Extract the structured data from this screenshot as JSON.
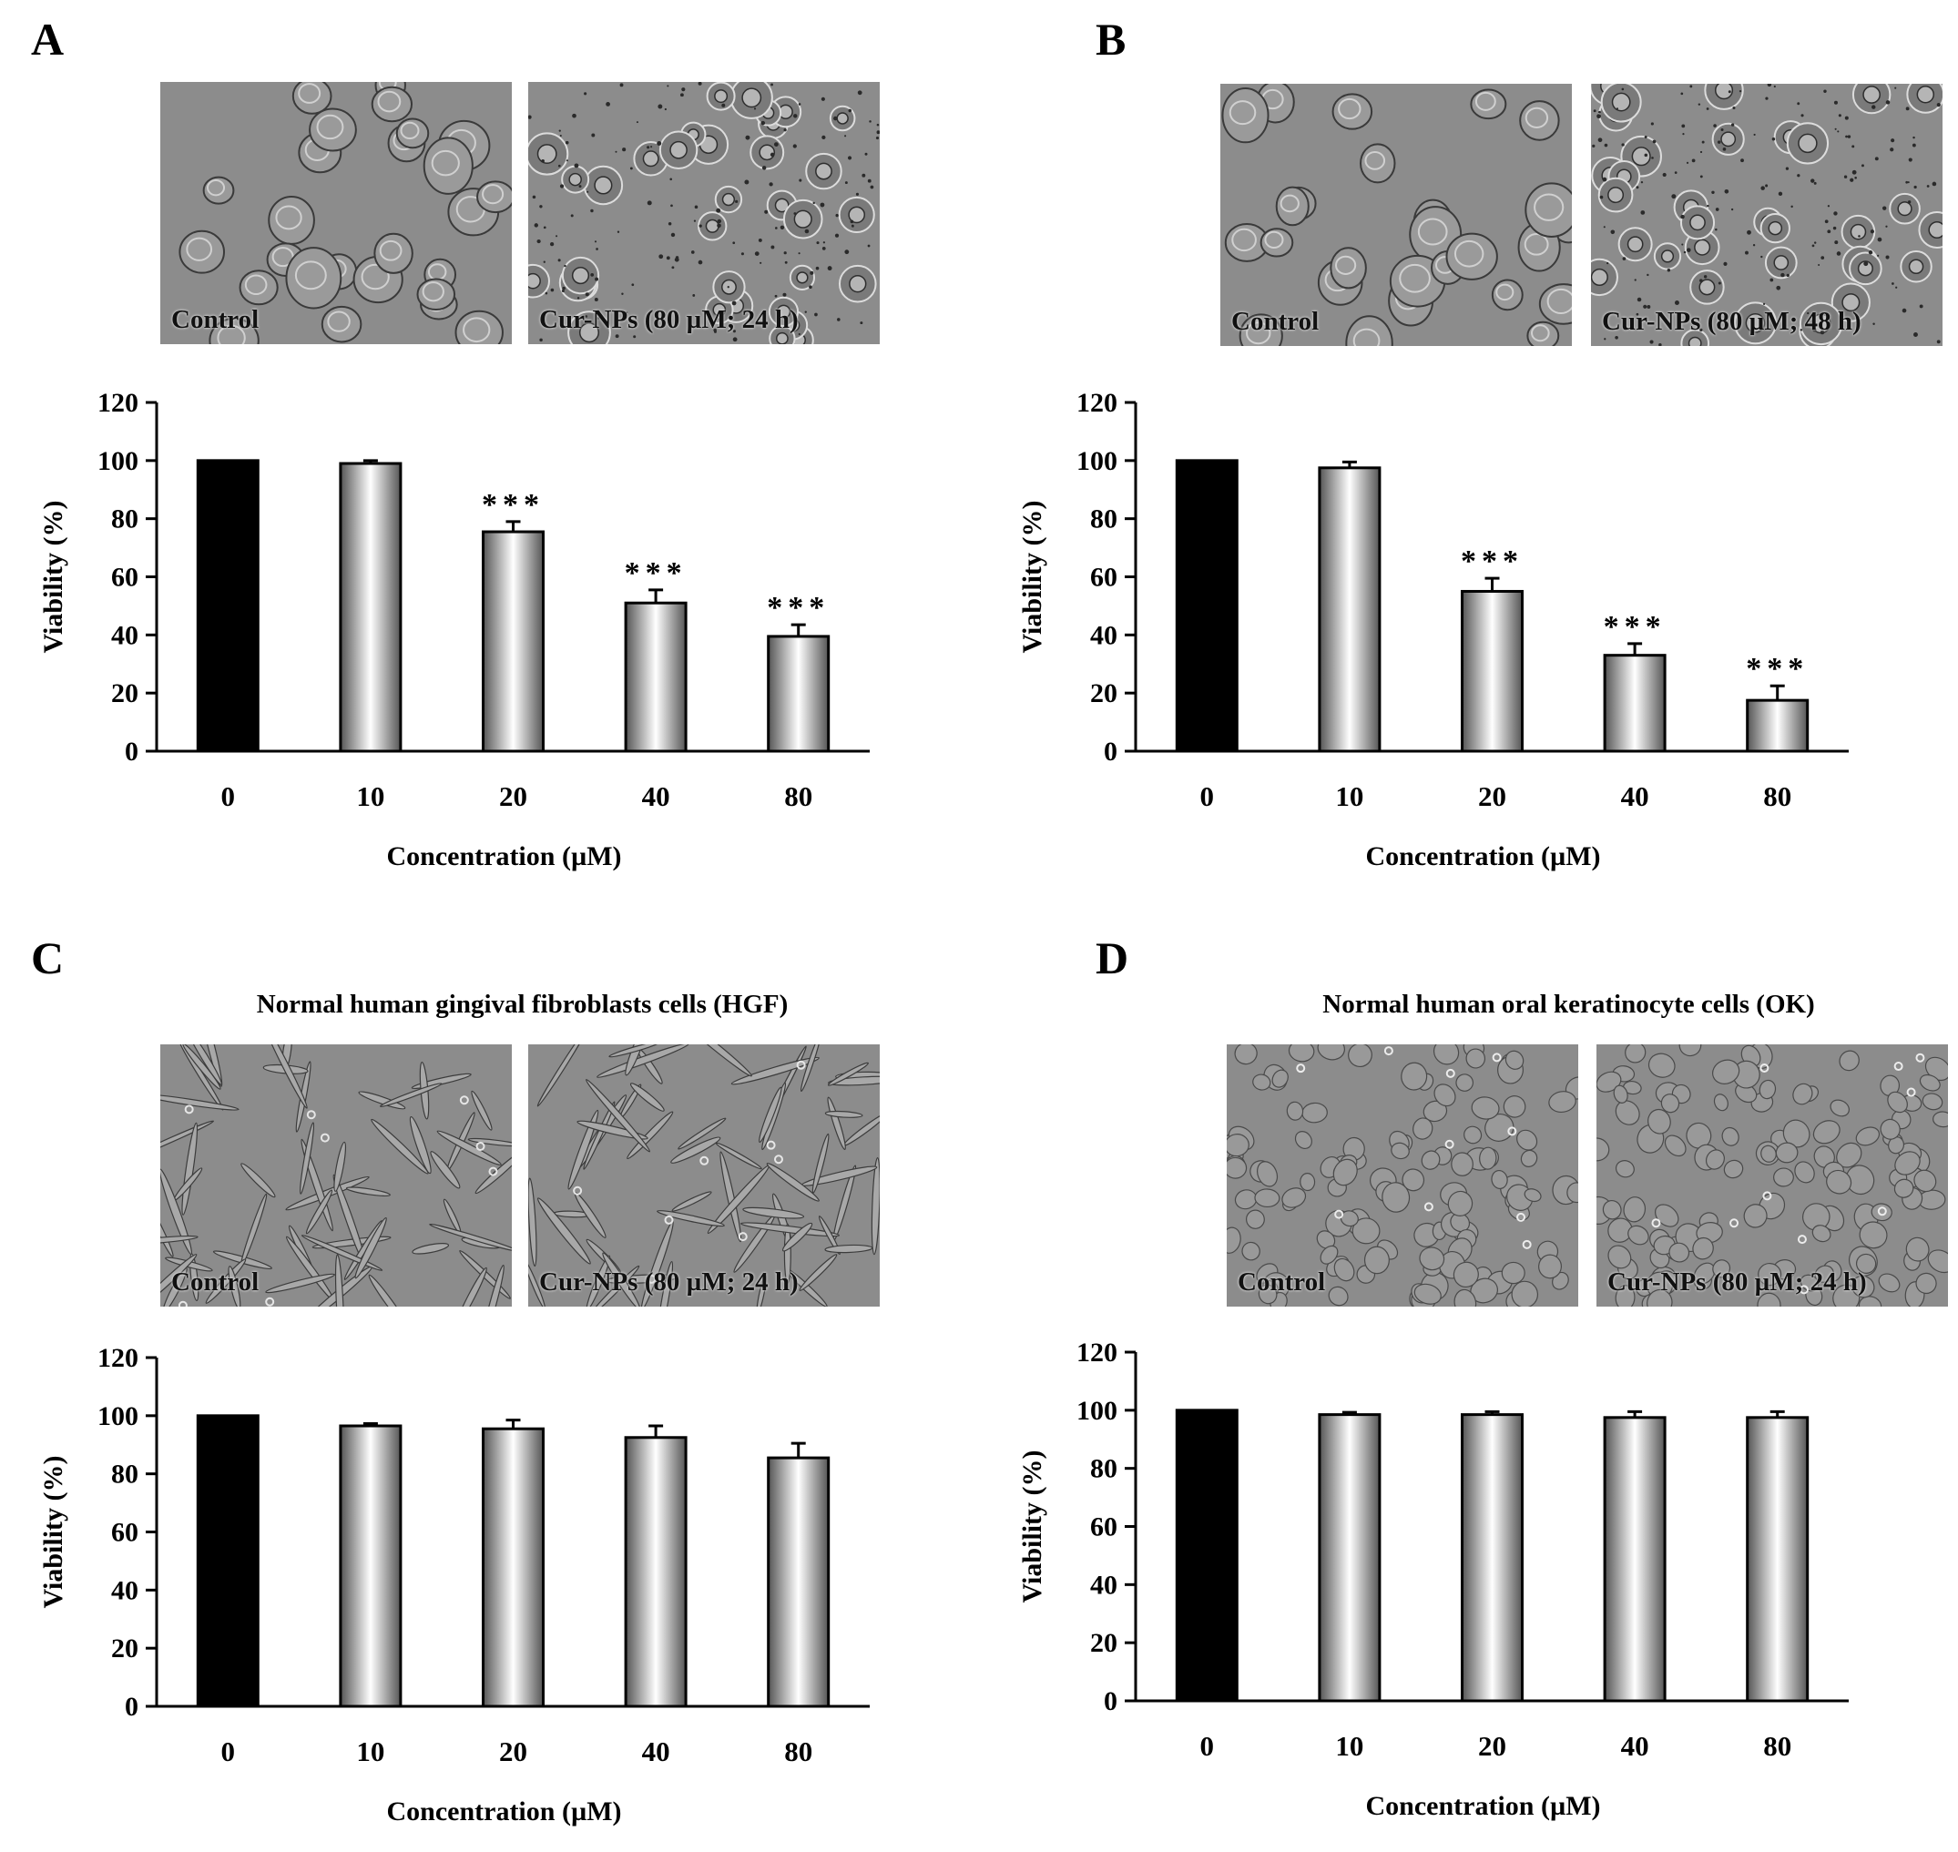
{
  "panels": [
    {
      "letter": "A",
      "title": "",
      "photos": [
        {
          "label": "Control",
          "texture": "large-round-cells"
        },
        {
          "label": "Cur-NPs (80 µM; 24 h)",
          "texture": "rounded-granular-cells"
        }
      ]
    },
    {
      "letter": "B",
      "title": "",
      "photos": [
        {
          "label": "Control",
          "texture": "large-round-cells"
        },
        {
          "label": "Cur-NPs (80 µM; 48 h)",
          "texture": "rounded-granular-cells"
        }
      ]
    },
    {
      "letter": "C",
      "title": "Normal human gingival fibroblasts cells (HGF)",
      "photos": [
        {
          "label": "Control",
          "texture": "spindle-fibroblasts"
        },
        {
          "label": "Cur-NPs (80 µM; 24 h)",
          "texture": "spindle-fibroblasts"
        }
      ]
    },
    {
      "letter": "D",
      "title": "Normal human oral keratinocyte cells (OK)",
      "photos": [
        {
          "label": "Control",
          "texture": "cobblestone-keratinocytes"
        },
        {
          "label": "Cur-NPs (80 µM; 24 h)",
          "texture": "cobblestone-keratinocytes"
        }
      ]
    }
  ],
  "colors": {
    "control_bar": "#000000",
    "treated_bar_edge": "#555555",
    "treated_bar_center": "#ffffff",
    "axis": "#000000",
    "photo_background": "#8c8c8c"
  },
  "chart_data": [
    {
      "type": "bar",
      "panel": "A",
      "categories": [
        "0",
        "10",
        "20",
        "40",
        "80"
      ],
      "values": [
        100,
        99,
        75.5,
        51,
        39.5
      ],
      "errors": [
        0,
        1,
        3.5,
        4.5,
        4
      ],
      "significance": [
        "",
        "",
        "***",
        "***",
        "***"
      ],
      "xlabel": "Concentration (µM)",
      "ylabel": "Viability (%)",
      "ylim": [
        0,
        120
      ],
      "yticks": [
        0,
        20,
        40,
        60,
        80,
        100,
        120
      ],
      "grid": false,
      "legend": "none"
    },
    {
      "type": "bar",
      "panel": "B",
      "categories": [
        "0",
        "10",
        "20",
        "40",
        "80"
      ],
      "values": [
        100,
        97.5,
        55,
        33,
        17.5
      ],
      "errors": [
        0,
        2,
        4.5,
        4,
        5
      ],
      "significance": [
        "",
        "",
        "***",
        "***",
        "***"
      ],
      "xlabel": "Concentration (µM)",
      "ylabel": "Viability (%)",
      "ylim": [
        0,
        120
      ],
      "yticks": [
        0,
        20,
        40,
        60,
        80,
        100,
        120
      ],
      "grid": false,
      "legend": "none"
    },
    {
      "type": "bar",
      "panel": "C",
      "categories": [
        "0",
        "10",
        "20",
        "40",
        "80"
      ],
      "values": [
        100,
        96.5,
        95.5,
        92.5,
        85.5
      ],
      "errors": [
        0,
        0.8,
        3,
        4,
        5
      ],
      "significance": [
        "",
        "",
        "",
        "",
        ""
      ],
      "xlabel": "Concentration (µM)",
      "ylabel": "Viability (%)",
      "ylim": [
        0,
        120
      ],
      "yticks": [
        0,
        20,
        40,
        60,
        80,
        100,
        120
      ],
      "grid": false,
      "legend": "none"
    },
    {
      "type": "bar",
      "panel": "D",
      "categories": [
        "0",
        "10",
        "20",
        "40",
        "80"
      ],
      "values": [
        100,
        98.5,
        98.5,
        97.5,
        97.5
      ],
      "errors": [
        0,
        0.8,
        1,
        2,
        2
      ],
      "significance": [
        "",
        "",
        "",
        "",
        ""
      ],
      "xlabel": "Concentration (µM)",
      "ylabel": "Viability (%)",
      "ylim": [
        0,
        120
      ],
      "yticks": [
        0,
        20,
        40,
        60,
        80,
        100,
        120
      ],
      "grid": false,
      "legend": "none"
    }
  ]
}
